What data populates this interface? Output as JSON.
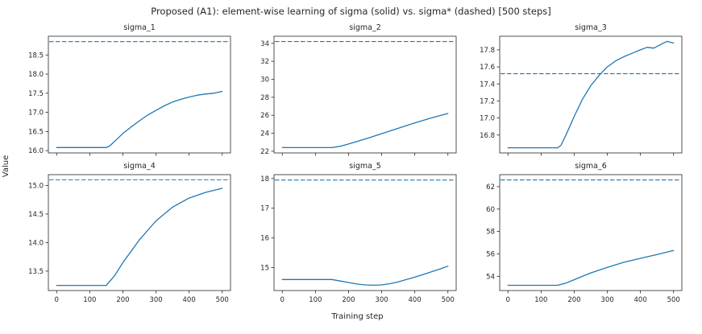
{
  "chart_data": {
    "type": "line",
    "title": "Proposed (A1): element-wise learning of sigma (solid) vs. sigma* (dashed) [500 steps]",
    "xlabel": "Training step",
    "ylabel": "Value",
    "legend_position": "none",
    "grid": false,
    "line_color": "#1f77b4",
    "xlim": [
      -25,
      525
    ],
    "xticks": [
      0,
      100,
      200,
      300,
      400,
      500
    ],
    "subplots": [
      {
        "title": "sigma_1",
        "dashed_value": 18.85,
        "ylim": [
          15.94,
          18.99
        ],
        "yticks": [
          16.0,
          16.5,
          17.0,
          17.5,
          18.0,
          18.5
        ],
        "ytick_labels": [
          "16.0",
          "16.5",
          "17.0",
          "17.5",
          "18.0",
          "18.5"
        ],
        "x": [
          0,
          50,
          100,
          150,
          160,
          180,
          200,
          225,
          250,
          275,
          300,
          325,
          350,
          375,
          400,
          425,
          450,
          475,
          500
        ],
        "y": [
          16.08,
          16.08,
          16.08,
          16.08,
          16.12,
          16.28,
          16.45,
          16.62,
          16.78,
          16.93,
          17.05,
          17.17,
          17.27,
          17.34,
          17.4,
          17.45,
          17.48,
          17.5,
          17.55
        ]
      },
      {
        "title": "sigma_2",
        "dashed_value": 34.2,
        "ylim": [
          21.81,
          34.79
        ],
        "yticks": [
          22,
          24,
          26,
          28,
          30,
          32,
          34
        ],
        "ytick_labels": [
          "22",
          "24",
          "26",
          "28",
          "30",
          "32",
          "34"
        ],
        "x": [
          0,
          50,
          100,
          150,
          175,
          200,
          250,
          300,
          350,
          400,
          450,
          500
        ],
        "y": [
          22.4,
          22.4,
          22.4,
          22.4,
          22.55,
          22.8,
          23.35,
          23.95,
          24.55,
          25.15,
          25.7,
          26.2
        ]
      },
      {
        "title": "sigma_3",
        "dashed_value": 17.52,
        "ylim": [
          16.59,
          17.96
        ],
        "yticks": [
          16.8,
          17.0,
          17.2,
          17.4,
          17.6,
          17.8
        ],
        "ytick_labels": [
          "16.8",
          "17.0",
          "17.2",
          "17.4",
          "17.6",
          "17.8"
        ],
        "x": [
          0,
          50,
          100,
          150,
          160,
          175,
          200,
          225,
          250,
          275,
          300,
          325,
          350,
          375,
          400,
          420,
          440,
          460,
          480,
          500
        ],
        "y": [
          16.65,
          16.65,
          16.65,
          16.65,
          16.68,
          16.8,
          17.02,
          17.22,
          17.38,
          17.5,
          17.6,
          17.67,
          17.72,
          17.76,
          17.8,
          17.83,
          17.82,
          17.86,
          17.9,
          17.88
        ]
      },
      {
        "title": "sigma_4",
        "dashed_value": 15.1,
        "ylim": [
          13.16,
          15.19
        ],
        "yticks": [
          13.5,
          14.0,
          14.5,
          15.0
        ],
        "ytick_labels": [
          "13.5",
          "14.0",
          "14.5",
          "15.0"
        ],
        "x": [
          0,
          50,
          100,
          150,
          175,
          200,
          250,
          300,
          350,
          400,
          450,
          500
        ],
        "y": [
          13.25,
          13.25,
          13.25,
          13.25,
          13.42,
          13.65,
          14.05,
          14.38,
          14.62,
          14.78,
          14.88,
          14.95
        ]
      },
      {
        "title": "sigma_5",
        "dashed_value": 17.95,
        "ylim": [
          14.23,
          18.13
        ],
        "yticks": [
          15,
          16,
          17,
          18
        ],
        "ytick_labels": [
          "15",
          "16",
          "17",
          "18"
        ],
        "x": [
          0,
          50,
          100,
          150,
          175,
          200,
          225,
          250,
          275,
          300,
          325,
          350,
          375,
          400,
          425,
          450,
          475,
          500
        ],
        "y": [
          14.6,
          14.6,
          14.6,
          14.6,
          14.55,
          14.5,
          14.45,
          14.42,
          14.41,
          14.42,
          14.46,
          14.52,
          14.6,
          14.68,
          14.77,
          14.86,
          14.95,
          15.05
        ]
      },
      {
        "title": "sigma_6",
        "dashed_value": 62.6,
        "ylim": [
          52.73,
          63.07
        ],
        "yticks": [
          54,
          56,
          58,
          60,
          62
        ],
        "ytick_labels": [
          "54",
          "56",
          "58",
          "60",
          "62"
        ],
        "x": [
          0,
          50,
          100,
          150,
          175,
          200,
          250,
          300,
          350,
          400,
          450,
          500
        ],
        "y": [
          53.2,
          53.2,
          53.2,
          53.2,
          53.4,
          53.7,
          54.3,
          54.8,
          55.25,
          55.6,
          55.95,
          56.3
        ]
      }
    ]
  }
}
